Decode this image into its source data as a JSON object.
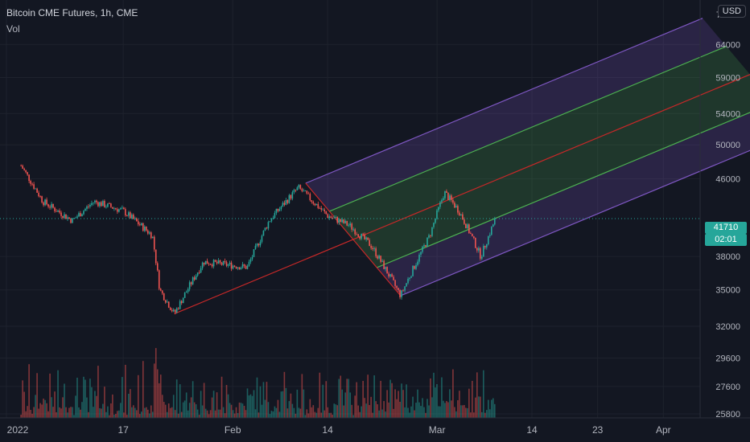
{
  "header": {
    "title": "Bitcoin CME Futures, 1h, CME",
    "volume_label": "Vol"
  },
  "currency": "USD",
  "price_axis": {
    "top_partial_label": "7",
    "labels": [
      "64000",
      "59000",
      "54000",
      "50000",
      "46000",
      "38000",
      "35000",
      "32000",
      "29600",
      "27600",
      "25800"
    ]
  },
  "time_axis": {
    "labels": [
      "2022",
      "17",
      "Feb",
      "14",
      "Mar",
      "14",
      "23",
      "Apr"
    ]
  },
  "last_price": {
    "value": "41710",
    "countdown": "02:01"
  },
  "colors": {
    "background": "#131722",
    "up": "#26a69a",
    "down": "#ef5350",
    "pitchfork_outer": "#7e57c2",
    "pitchfork_inner": "#4caf50",
    "median": "#c62828"
  },
  "chart_data": {
    "type": "candlestick",
    "symbol": "Bitcoin CME Futures",
    "interval": "1h",
    "exchange": "CME",
    "x_range": [
      "2022-01-01",
      "2022-04-10"
    ],
    "y_range": [
      25800,
      70000
    ],
    "y_scale": "log",
    "last_close": 41710,
    "price_path": [
      {
        "date": "2022-01-03",
        "price": 47500
      },
      {
        "date": "2022-01-06",
        "price": 43500
      },
      {
        "date": "2022-01-10",
        "price": 41500
      },
      {
        "date": "2022-01-13",
        "price": 43500
      },
      {
        "date": "2022-01-17",
        "price": 42500
      },
      {
        "date": "2022-01-21",
        "price": 40000
      },
      {
        "date": "2022-01-22",
        "price": 35000
      },
      {
        "date": "2022-01-24",
        "price": 33000
      },
      {
        "date": "2022-01-28",
        "price": 37500
      },
      {
        "date": "2022-02-03",
        "price": 37000
      },
      {
        "date": "2022-02-06",
        "price": 41500
      },
      {
        "date": "2022-02-10",
        "price": 45000
      },
      {
        "date": "2022-02-14",
        "price": 42000
      },
      {
        "date": "2022-02-17",
        "price": 41000
      },
      {
        "date": "2022-02-20",
        "price": 39000
      },
      {
        "date": "2022-02-24",
        "price": 34500
      },
      {
        "date": "2022-02-28",
        "price": 40000
      },
      {
        "date": "2022-03-02",
        "price": 44500
      },
      {
        "date": "2022-03-04",
        "price": 42500
      },
      {
        "date": "2022-03-07",
        "price": 38000
      },
      {
        "date": "2022-03-09",
        "price": 41710
      }
    ],
    "pitchfork": {
      "type": "andrews_pitchfork",
      "pivot": {
        "date": "2022-01-24",
        "price": 33000
      },
      "high": {
        "date": "2022-02-11",
        "price": 45500
      },
      "low": {
        "date": "2022-02-24",
        "price": 34500
      }
    }
  }
}
